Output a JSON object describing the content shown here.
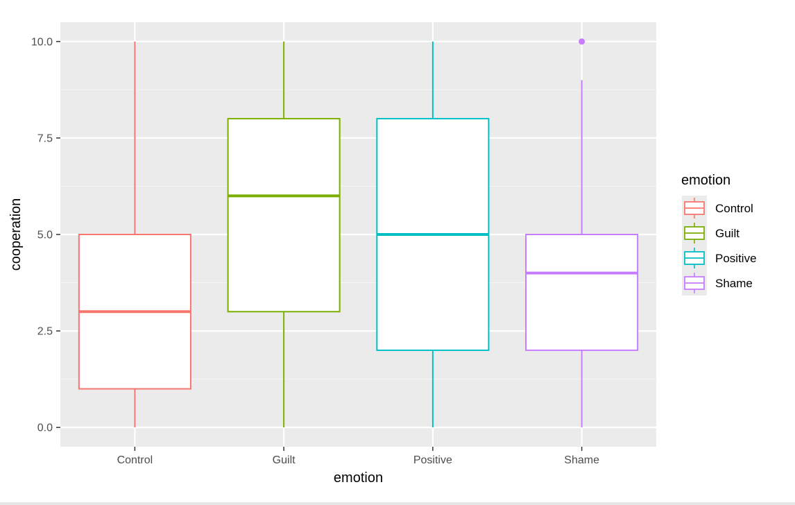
{
  "colors": {
    "panel_background": "#ebebeb",
    "grid_major": "#ffffff",
    "grid_minor": "#f5f5f5",
    "Control": "#f8766d",
    "Guilt": "#7cae00",
    "Positive": "#00bfc4",
    "Shame": "#c77cff"
  },
  "chart_data": {
    "type": "boxplot",
    "title": "",
    "xlabel": "emotion",
    "ylabel": "cooperation",
    "categories": [
      "Control",
      "Guilt",
      "Positive",
      "Shame"
    ],
    "ylim": [
      -0.5,
      10.5
    ],
    "yticks": [
      0.0,
      2.5,
      5.0,
      7.5,
      10.0
    ],
    "ytick_labels": [
      "0.0",
      "2.5",
      "5.0",
      "7.5",
      "10.0"
    ],
    "grid": true,
    "legend": {
      "title": "emotion",
      "position": "right",
      "entries": [
        "Control",
        "Guilt",
        "Positive",
        "Shame"
      ]
    },
    "boxes": [
      {
        "category": "Control",
        "min": 0,
        "q1": 1,
        "median": 3,
        "q3": 5,
        "max": 10,
        "outliers": []
      },
      {
        "category": "Guilt",
        "min": 0,
        "q1": 3,
        "median": 6,
        "q3": 8,
        "max": 10,
        "outliers": []
      },
      {
        "category": "Positive",
        "min": 0,
        "q1": 2,
        "median": 5,
        "q3": 8,
        "max": 10,
        "outliers": []
      },
      {
        "category": "Shame",
        "min": 0,
        "q1": 2,
        "median": 4,
        "q3": 5,
        "max": 9,
        "outliers": [
          10
        ]
      }
    ]
  }
}
